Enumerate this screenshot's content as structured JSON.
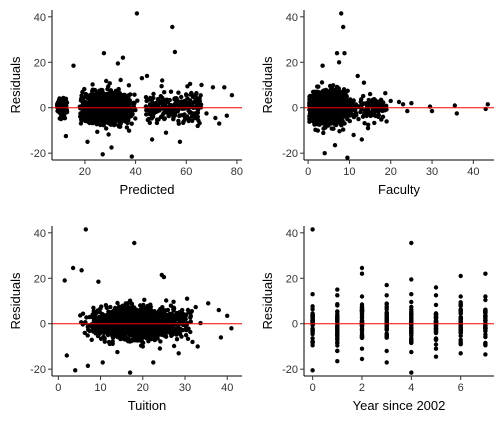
{
  "chart_data": [
    {
      "type": "scatter",
      "title": "",
      "xlabel": "Predicted",
      "ylabel": "Residuals",
      "xlim": [
        7,
        82
      ],
      "ylim": [
        -23,
        43
      ],
      "xticks": [
        20,
        40,
        60,
        80
      ],
      "yticks": [
        -20,
        0,
        20,
        40
      ],
      "reference_line": {
        "y": 0,
        "color": "#ff0000"
      },
      "grid": false,
      "seed": 11,
      "points": [
        [
          40.5,
          41.5
        ],
        [
          54.5,
          35.5
        ],
        [
          27.5,
          24
        ],
        [
          55.5,
          24.5
        ],
        [
          15.5,
          18.5
        ],
        [
          33,
          19.5
        ],
        [
          44.5,
          14
        ],
        [
          42.5,
          13
        ],
        [
          50.5,
          12
        ],
        [
          61.5,
          10.5
        ],
        [
          66,
          10
        ],
        [
          70.5,
          9
        ],
        [
          75,
          9
        ],
        [
          78,
          5.5
        ],
        [
          76,
          -3.5
        ],
        [
          73,
          -7
        ],
        [
          71.5,
          -4.5
        ],
        [
          64.5,
          -8
        ],
        [
          59,
          -6
        ],
        [
          57.5,
          -15
        ],
        [
          46.5,
          -14
        ],
        [
          38.5,
          -21.5
        ],
        [
          27,
          -20.5
        ],
        [
          30.5,
          -17.5
        ],
        [
          21,
          -15
        ],
        [
          12.5,
          -12.5
        ],
        [
          10.5,
          -5
        ],
        [
          9,
          1.5
        ],
        [
          52,
          -11
        ],
        [
          62,
          6.5
        ],
        [
          68,
          -2.5
        ],
        [
          35,
          22
        ]
      ],
      "generated": [
        {
          "n": 1400,
          "x_range": [
            13,
            46
          ],
          "x_center": 27,
          "residual_sd": 3.4,
          "clip": [
            -14,
            14
          ]
        },
        {
          "n": 220,
          "x_range": [
            44,
            66
          ],
          "residual_sd": 3.2,
          "clip": [
            -11,
            12
          ]
        },
        {
          "n": 70,
          "x_range": [
            9,
            13
          ],
          "residual_sd": 2.8,
          "clip": [
            -8,
            8
          ]
        }
      ]
    },
    {
      "type": "scatter",
      "title": "",
      "xlabel": "Faculty",
      "ylabel": "Residuals",
      "xlim": [
        -1,
        45
      ],
      "ylim": [
        -23,
        43
      ],
      "xticks": [
        0,
        10,
        20,
        30,
        40
      ],
      "yticks": [
        -20,
        0,
        20,
        40
      ],
      "reference_line": {
        "y": 0,
        "color": "#ff0000"
      },
      "grid": false,
      "seed": 23,
      "points": [
        [
          8,
          41.5
        ],
        [
          8.5,
          35.5
        ],
        [
          7,
          24
        ],
        [
          8.8,
          24
        ],
        [
          7.5,
          20
        ],
        [
          3.5,
          18.5
        ],
        [
          12,
          14
        ],
        [
          13.5,
          11
        ],
        [
          15,
          6
        ],
        [
          16,
          3.5
        ],
        [
          18,
          2
        ],
        [
          20,
          3
        ],
        [
          22,
          2.5
        ],
        [
          23,
          1.5
        ],
        [
          24,
          -1.5
        ],
        [
          25,
          2
        ],
        [
          29.5,
          0.5
        ],
        [
          30,
          -1.5
        ],
        [
          35.5,
          1
        ],
        [
          36,
          -2.5
        ],
        [
          43,
          -0.5
        ],
        [
          43.5,
          1.5
        ],
        [
          9.5,
          -22
        ],
        [
          4,
          -20
        ],
        [
          6.5,
          -16.5
        ],
        [
          11,
          -12
        ],
        [
          13,
          -14
        ],
        [
          14.5,
          -9
        ],
        [
          17,
          -4
        ],
        [
          19,
          -6
        ]
      ],
      "generated": [
        {
          "n": 1450,
          "x_range": [
            0.3,
            11
          ],
          "x_center": 4,
          "residual_sd": 3.4,
          "clip": [
            -14,
            14
          ]
        },
        {
          "n": 120,
          "x_range": [
            10,
            19
          ],
          "residual_sd": 2.4,
          "clip": [
            -8,
            8
          ]
        }
      ]
    },
    {
      "type": "scatter",
      "title": "",
      "xlabel": "Tuition",
      "ylabel": "Residuals",
      "xlim": [
        -1.5,
        43.5
      ],
      "ylim": [
        -23,
        43
      ],
      "xticks": [
        0,
        10,
        20,
        30,
        40
      ],
      "yticks": [
        -20,
        0,
        20,
        40
      ],
      "reference_line": {
        "y": 0,
        "color": "#ff0000"
      },
      "grid": false,
      "seed": 37,
      "points": [
        [
          6.5,
          41.5
        ],
        [
          18,
          35.5
        ],
        [
          3.5,
          24.5
        ],
        [
          5.5,
          23.5
        ],
        [
          24.5,
          21.5
        ],
        [
          25,
          20.5
        ],
        [
          9.5,
          18.5
        ],
        [
          1.5,
          19
        ],
        [
          30.5,
          11
        ],
        [
          35.5,
          9
        ],
        [
          38,
          6
        ],
        [
          40,
          3.5
        ],
        [
          41,
          -2
        ],
        [
          38.5,
          -6
        ],
        [
          33,
          -10
        ],
        [
          28.5,
          -13
        ],
        [
          22.5,
          -17
        ],
        [
          17,
          -21.5
        ],
        [
          10.5,
          -17
        ],
        [
          7,
          -18.5
        ],
        [
          4,
          -20.5
        ],
        [
          2,
          -14
        ],
        [
          14,
          -12.5
        ],
        [
          20,
          -10
        ]
      ],
      "generated": [
        {
          "n": 1600,
          "x_range": [
            0.5,
            42
          ],
          "x_center": 15,
          "residual_sd": 3.4,
          "clip": [
            -14,
            14
          ]
        }
      ]
    },
    {
      "type": "scatter",
      "title": "",
      "xlabel": "Year since 2002",
      "ylabel": "Residuals",
      "xlim": [
        -0.35,
        7.35
      ],
      "ylim": [
        -23,
        43
      ],
      "xticks": [
        0,
        2,
        4,
        6
      ],
      "yticks": [
        -20,
        0,
        20,
        40
      ],
      "reference_line": {
        "y": 0,
        "color": "#ff0000"
      },
      "grid": false,
      "seed": 53,
      "points": [
        [
          0,
          41.5
        ],
        [
          4,
          35.5
        ],
        [
          2,
          24.5
        ],
        [
          2,
          22
        ],
        [
          7,
          22
        ],
        [
          6,
          21
        ],
        [
          4,
          19.5
        ],
        [
          3,
          17
        ],
        [
          5,
          16
        ],
        [
          1,
          15
        ],
        [
          0,
          -20.5
        ],
        [
          4,
          -21.5
        ],
        [
          1,
          -16.5
        ],
        [
          3,
          -17
        ],
        [
          5,
          -14.5
        ],
        [
          6,
          -13
        ],
        [
          7,
          -13.5
        ],
        [
          2,
          -15.5
        ]
      ],
      "columns": [
        0,
        1,
        2,
        3,
        4,
        5,
        6,
        7
      ],
      "per_column": 44,
      "column_range": [
        [
          -9.5,
          13
        ],
        [
          -12,
          12.5
        ],
        [
          -11,
          12
        ],
        [
          -12,
          12.5
        ],
        [
          -12.5,
          13
        ],
        [
          -11,
          12.5
        ],
        [
          -9,
          12
        ],
        [
          -9.5,
          12
        ]
      ]
    }
  ]
}
